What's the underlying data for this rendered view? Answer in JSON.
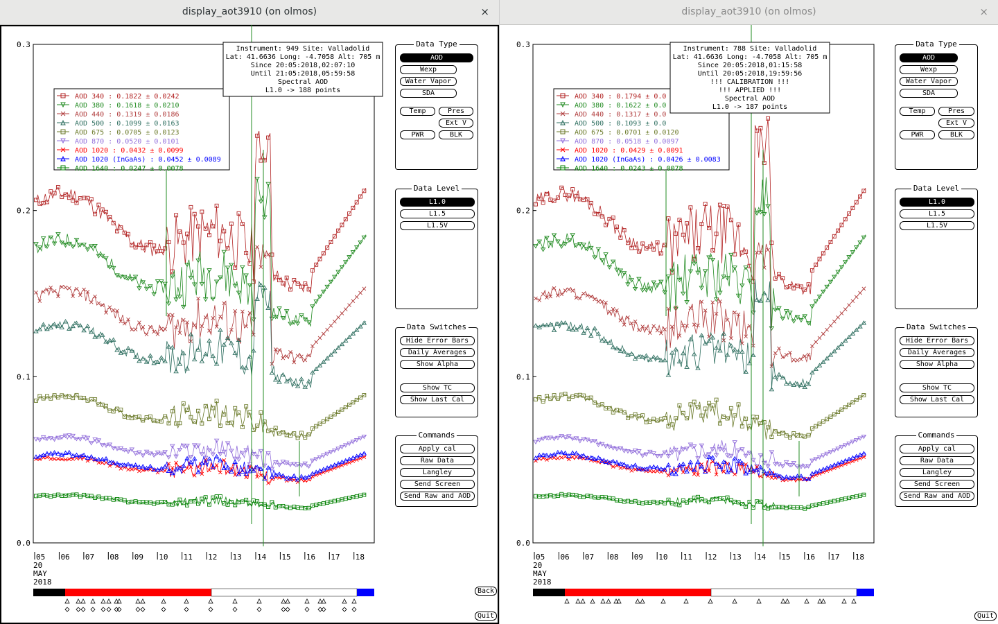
{
  "windows": [
    {
      "title": "display_aot3910 (on olmos)",
      "close": "×",
      "info": [
        "Instrument: 949 Site: Valladolid",
        "Lat: 41.6636 Long: -4.7058 Alt: 705 m",
        "Since 20:05:2018,02:07:10",
        "Until 21:05:2018,05:59:58",
        "Spectral AOD",
        "L1.0 -> 188 points"
      ],
      "legend": [
        {
          "name": "AOD 340",
          "stat": ": 0.1822 ± 0.0242",
          "color": "#b22222",
          "marker": "square"
        },
        {
          "name": "AOD 380",
          "stat": ": 0.1618 ± 0.0210",
          "color": "#228b22",
          "marker": "tri-down"
        },
        {
          "name": "AOD 440",
          "stat": ": 0.1319 ± 0.0186",
          "color": "#b03c3c",
          "marker": "x"
        },
        {
          "name": "AOD 500",
          "stat": ": 0.1099 ± 0.0163",
          "color": "#2f6f60",
          "marker": "tri-up"
        },
        {
          "name": "AOD 675",
          "stat": ": 0.0705 ± 0.0123",
          "color": "#6b7a2a",
          "marker": "square"
        },
        {
          "name": "AOD 870",
          "stat": ": 0.0520 ± 0.0101",
          "color": "#9370db",
          "marker": "tri-down"
        },
        {
          "name": "AOD 1020 ",
          "stat": ": 0.0432 ± 0.0099",
          "color": "#ff0000",
          "marker": "x"
        },
        {
          "name": "AOD 1020 (InGaAs) ",
          "stat": ": 0.0452 ± 0.0089",
          "color": "#0000ff",
          "marker": "tri-up"
        },
        {
          "name": "AOD 1640 ",
          "stat": ": 0.0247 ± 0.0078",
          "color": "#008000",
          "marker": "square"
        }
      ],
      "seed": 11
    },
    {
      "title": "display_aot3910 (on olmos)",
      "close": "×",
      "info": [
        "Instrument: 788 Site: Valladolid",
        "Lat: 41.6636 Long: -4.7058 Alt: 705 m",
        "Since 20:05:2018,01:15:58",
        "Until 20:05:2018,19:59:56",
        "!!! CALIBRATION !!!",
        "!!!   APPLIED   !!!",
        "Spectral AOD",
        "L1.0 -> 187 points"
      ],
      "legend": [
        {
          "name": "AOD 340",
          "stat": ": 0.1794 ± 0.0",
          "color": "#b22222",
          "marker": "square"
        },
        {
          "name": "AOD 380",
          "stat": ": 0.1622 ± 0.0",
          "color": "#228b22",
          "marker": "tri-down"
        },
        {
          "name": "AOD 440",
          "stat": ": 0.1317 ± 0.0",
          "color": "#b03c3c",
          "marker": "x"
        },
        {
          "name": "AOD 500",
          "stat": ": 0.1093 ± 0.0",
          "color": "#2f6f60",
          "marker": "tri-up"
        },
        {
          "name": "AOD 675",
          "stat": ": 0.0701 ± 0.0120",
          "color": "#6b7a2a",
          "marker": "square"
        },
        {
          "name": "AOD 870",
          "stat": ": 0.0518 ± 0.0097",
          "color": "#9370db",
          "marker": "tri-down"
        },
        {
          "name": "AOD 1020 ",
          "stat": ": 0.0429 ± 0.0091",
          "color": "#ff0000",
          "marker": "x"
        },
        {
          "name": "AOD 1020 (InGaAs) ",
          "stat": ": 0.0426 ± 0.0083",
          "color": "#0000ff",
          "marker": "tri-up"
        },
        {
          "name": "AOD 1640 ",
          "stat": ": 0.0243 ± 0.0078",
          "color": "#008000",
          "marker": "square"
        }
      ],
      "seed": 29
    }
  ],
  "chart_data": {
    "type": "scatter",
    "y_ticks": [
      "0.3",
      "0.2",
      "0.1",
      "0.0"
    ],
    "ylim": [
      0.0,
      0.3
    ],
    "x_ticks": [
      "05",
      "06",
      "07",
      "08",
      "09",
      "10",
      "11",
      "12",
      "13",
      "14",
      "15",
      "16",
      "17",
      "18"
    ],
    "date_label": [
      "20",
      "MAY",
      "2018"
    ],
    "series_base_values": [
      0.205,
      0.178,
      0.148,
      0.128,
      0.086,
      0.062,
      0.05,
      0.052,
      0.028
    ]
  },
  "panels": {
    "data_type": {
      "title": "Data Type",
      "aod": "AOD",
      "wexp": "Wexp",
      "water_vapor": "Water Vapor",
      "sda": "SDA",
      "temp": "Temp",
      "pres": "Pres",
      "ext_v": "Ext V",
      "pwr": "PWR",
      "blk": "BLK"
    },
    "data_level": {
      "title": "Data Level",
      "l10": "L1.0",
      "l15": "L1.5",
      "l15v": "L1.5V"
    },
    "data_switches": {
      "title": "Data Switches",
      "hide_error_bars": "Hide Error Bars",
      "daily_averages": "Daily Averages",
      "show_alpha": "Show Alpha",
      "show_tc": "Show TC",
      "show_last_cal": "Show Last Cal"
    },
    "commands": {
      "title": "Commands",
      "apply_cal": "Apply cal",
      "raw_data": "Raw Data",
      "langley": "Langley",
      "send_screen": "Send Screen",
      "send_raw_and_aod": "Send Raw and AOD"
    }
  },
  "bottom": {
    "back": "Back",
    "quit": "Quit"
  },
  "colors": {
    "timebar_black": "#000000",
    "timebar_red": "#ff0000",
    "timebar_white": "#ffffff",
    "timebar_blue": "#0000ff"
  }
}
